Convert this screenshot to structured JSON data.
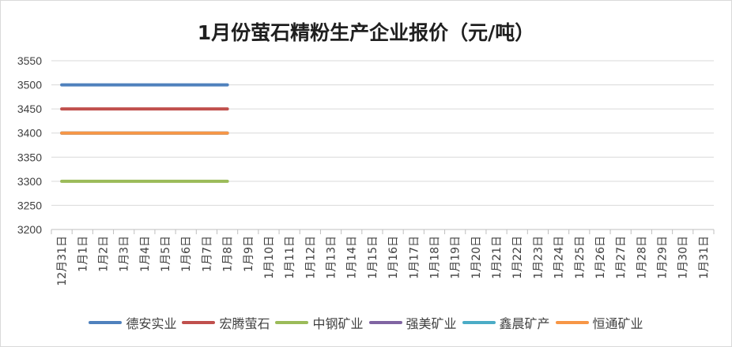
{
  "chart_data": {
    "type": "line",
    "title": "1月份萤石精粉生产企业报价（元/吨）",
    "categories": [
      "12月31日",
      "1月1日",
      "1月2日",
      "1月3日",
      "1月4日",
      "1月5日",
      "1月6日",
      "1月7日",
      "1月8日",
      "1月9日",
      "1月10日",
      "1月11日",
      "1月12日",
      "1月13日",
      "1月14日",
      "1月15日",
      "1月16日",
      "1月17日",
      "1月18日",
      "1月19日",
      "1月20日",
      "1月21日",
      "1月22日",
      "1月23日",
      "1月24日",
      "1月25日",
      "1月26日",
      "1月27日",
      "1月28日",
      "1月29日",
      "1月30日",
      "1月31日"
    ],
    "yticks": [
      3200,
      3250,
      3300,
      3350,
      3400,
      3450,
      3500,
      3550
    ],
    "ylim": [
      3200,
      3550
    ],
    "grid": true,
    "legend": "bottom",
    "series": [
      {
        "name": "德安实业",
        "color": "#4F81BD",
        "values": [
          3500,
          3500,
          3500,
          3500,
          3500,
          3500,
          3500,
          3500,
          3500,
          null,
          null,
          null,
          null,
          null,
          null,
          null,
          null,
          null,
          null,
          null,
          null,
          null,
          null,
          null,
          null,
          null,
          null,
          null,
          null,
          null,
          null,
          null
        ]
      },
      {
        "name": "宏腾萤石",
        "color": "#C0504D",
        "values": [
          3450,
          3450,
          3450,
          3450,
          3450,
          3450,
          3450,
          3450,
          3450,
          null,
          null,
          null,
          null,
          null,
          null,
          null,
          null,
          null,
          null,
          null,
          null,
          null,
          null,
          null,
          null,
          null,
          null,
          null,
          null,
          null,
          null,
          null
        ]
      },
      {
        "name": "中钢矿业",
        "color": "#9BBB59",
        "values": [
          3300,
          3300,
          3300,
          3300,
          3300,
          3300,
          3300,
          3300,
          3300,
          null,
          null,
          null,
          null,
          null,
          null,
          null,
          null,
          null,
          null,
          null,
          null,
          null,
          null,
          null,
          null,
          null,
          null,
          null,
          null,
          null,
          null,
          null
        ]
      },
      {
        "name": "强美矿业",
        "color": "#8064A2",
        "values": [
          3400,
          3400,
          3400,
          3400,
          3400,
          3400,
          3400,
          3400,
          3400,
          null,
          null,
          null,
          null,
          null,
          null,
          null,
          null,
          null,
          null,
          null,
          null,
          null,
          null,
          null,
          null,
          null,
          null,
          null,
          null,
          null,
          null,
          null
        ]
      },
      {
        "name": "鑫晨矿产",
        "color": "#4BACC6",
        "values": [
          3400,
          3400,
          3400,
          3400,
          3400,
          3400,
          3400,
          3400,
          3400,
          null,
          null,
          null,
          null,
          null,
          null,
          null,
          null,
          null,
          null,
          null,
          null,
          null,
          null,
          null,
          null,
          null,
          null,
          null,
          null,
          null,
          null,
          null
        ]
      },
      {
        "name": "恒通矿业",
        "color": "#F79646",
        "values": [
          3400,
          3400,
          3400,
          3400,
          3400,
          3400,
          3400,
          3400,
          3400,
          null,
          null,
          null,
          null,
          null,
          null,
          null,
          null,
          null,
          null,
          null,
          null,
          null,
          null,
          null,
          null,
          null,
          null,
          null,
          null,
          null,
          null,
          null
        ]
      }
    ]
  }
}
